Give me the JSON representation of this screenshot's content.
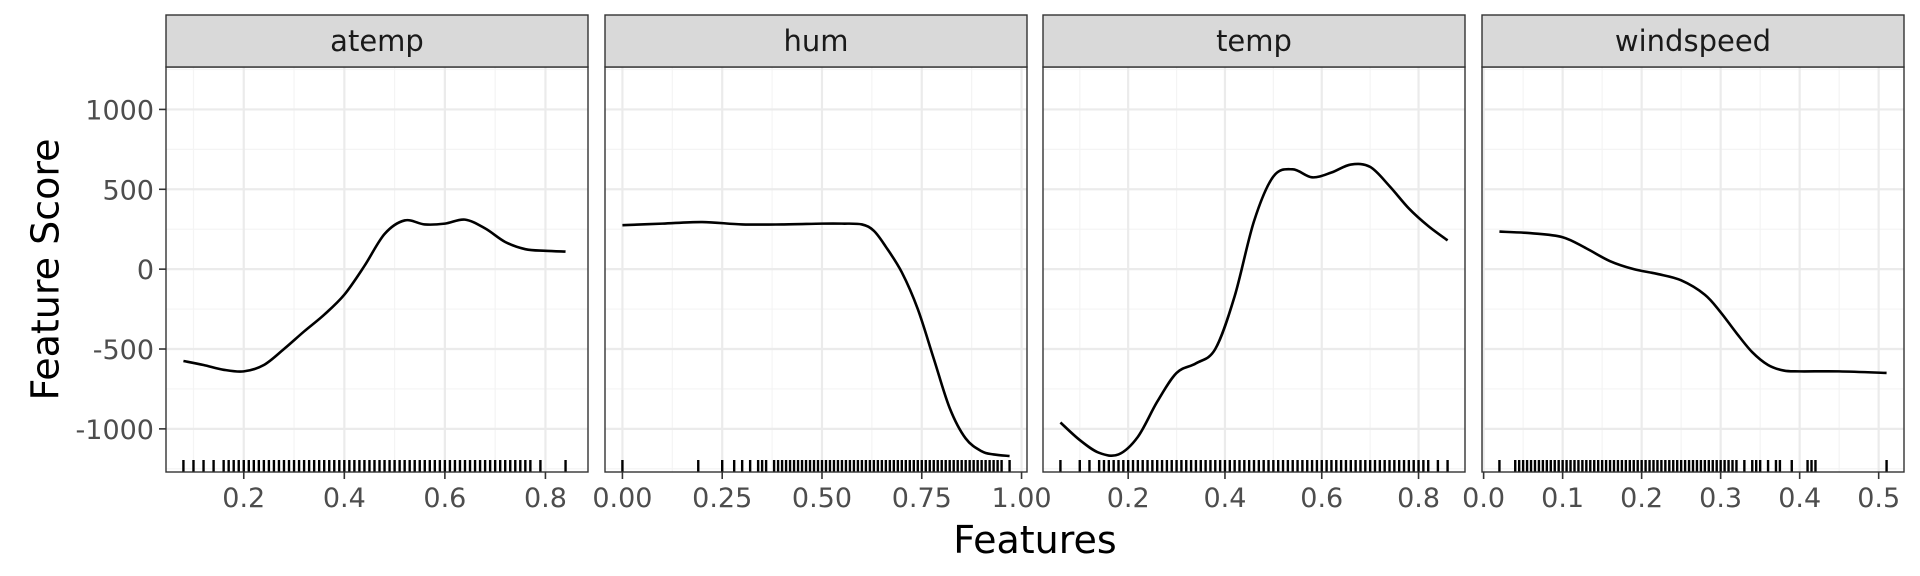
{
  "chart_data": {
    "type": "line",
    "xlabel": "Features",
    "ylabel": "Feature Score",
    "ylim": [
      -1270,
      1000
    ],
    "y_ticks": [
      1000,
      500,
      0,
      -500,
      -1000
    ],
    "y_tick_labels": [
      "1000",
      "500",
      "0",
      "-500",
      "-1000"
    ],
    "grid": true,
    "panels": [
      {
        "name": "atemp",
        "xlim": [
          0.08,
          0.85
        ],
        "x_ticks": [
          0.2,
          0.4,
          0.6,
          0.8
        ],
        "x_tick_labels": [
          "0.2",
          "0.4",
          "0.6",
          "0.8"
        ],
        "x": [
          0.08,
          0.12,
          0.16,
          0.2,
          0.24,
          0.28,
          0.32,
          0.36,
          0.4,
          0.44,
          0.48,
          0.52,
          0.56,
          0.6,
          0.64,
          0.68,
          0.72,
          0.76,
          0.8,
          0.84
        ],
        "y": [
          -575,
          -600,
          -630,
          -640,
          -600,
          -500,
          -390,
          -285,
          -160,
          20,
          220,
          305,
          280,
          285,
          310,
          255,
          170,
          125,
          115,
          110
        ],
        "rug": [
          0.08,
          0.1,
          0.12,
          0.14,
          0.16,
          0.17,
          0.18,
          0.19,
          0.2,
          0.21,
          0.22,
          0.23,
          0.24,
          0.25,
          0.26,
          0.27,
          0.28,
          0.29,
          0.3,
          0.31,
          0.32,
          0.33,
          0.34,
          0.35,
          0.36,
          0.37,
          0.38,
          0.39,
          0.4,
          0.41,
          0.42,
          0.43,
          0.44,
          0.45,
          0.46,
          0.47,
          0.48,
          0.49,
          0.5,
          0.51,
          0.52,
          0.53,
          0.54,
          0.55,
          0.56,
          0.57,
          0.58,
          0.59,
          0.6,
          0.61,
          0.62,
          0.63,
          0.64,
          0.65,
          0.66,
          0.67,
          0.68,
          0.69,
          0.7,
          0.71,
          0.72,
          0.73,
          0.74,
          0.75,
          0.76,
          0.77,
          0.79,
          0.84
        ]
      },
      {
        "name": "hum",
        "xlim": [
          0.0,
          0.97
        ],
        "x_ticks": [
          0.0,
          0.25,
          0.5,
          0.75,
          1.0
        ],
        "x_tick_labels": [
          "0.00",
          "0.25",
          "0.50",
          "0.75",
          "1.00"
        ],
        "x": [
          0.0,
          0.1,
          0.2,
          0.3,
          0.4,
          0.5,
          0.55,
          0.6,
          0.63,
          0.66,
          0.7,
          0.74,
          0.78,
          0.82,
          0.86,
          0.9,
          0.93,
          0.97
        ],
        "y": [
          275,
          285,
          295,
          280,
          280,
          285,
          285,
          280,
          240,
          140,
          -20,
          -250,
          -560,
          -870,
          -1060,
          -1140,
          -1160,
          -1170
        ],
        "rug": [
          0.0,
          0.19,
          0.25,
          0.28,
          0.3,
          0.32,
          0.34,
          0.35,
          0.36,
          0.38,
          0.39,
          0.4,
          0.41,
          0.42,
          0.43,
          0.44,
          0.45,
          0.46,
          0.47,
          0.48,
          0.49,
          0.5,
          0.51,
          0.52,
          0.53,
          0.54,
          0.55,
          0.56,
          0.57,
          0.58,
          0.59,
          0.6,
          0.61,
          0.62,
          0.63,
          0.64,
          0.65,
          0.66,
          0.67,
          0.68,
          0.69,
          0.7,
          0.71,
          0.72,
          0.73,
          0.74,
          0.75,
          0.76,
          0.77,
          0.78,
          0.79,
          0.8,
          0.81,
          0.82,
          0.83,
          0.84,
          0.85,
          0.86,
          0.87,
          0.88,
          0.89,
          0.9,
          0.91,
          0.92,
          0.93,
          0.94,
          0.95,
          0.97
        ]
      },
      {
        "name": "temp",
        "xlim": [
          0.06,
          0.86
        ],
        "x_ticks": [
          0.2,
          0.4,
          0.6,
          0.8
        ],
        "x_tick_labels": [
          "0.2",
          "0.4",
          "0.6",
          "0.8"
        ],
        "x": [
          0.06,
          0.1,
          0.14,
          0.18,
          0.22,
          0.26,
          0.3,
          0.34,
          0.38,
          0.42,
          0.46,
          0.5,
          0.54,
          0.58,
          0.62,
          0.66,
          0.7,
          0.74,
          0.78,
          0.82,
          0.86
        ],
        "y": [
          -960,
          -1070,
          -1150,
          -1160,
          -1050,
          -830,
          -650,
          -590,
          -500,
          -170,
          300,
          580,
          625,
          575,
          605,
          655,
          640,
          520,
          380,
          270,
          180
        ],
        "rug": [
          0.06,
          0.1,
          0.12,
          0.14,
          0.15,
          0.16,
          0.17,
          0.18,
          0.19,
          0.2,
          0.21,
          0.22,
          0.23,
          0.24,
          0.25,
          0.26,
          0.27,
          0.28,
          0.29,
          0.3,
          0.31,
          0.32,
          0.33,
          0.34,
          0.35,
          0.36,
          0.37,
          0.38,
          0.39,
          0.4,
          0.41,
          0.42,
          0.43,
          0.44,
          0.45,
          0.46,
          0.47,
          0.48,
          0.49,
          0.5,
          0.51,
          0.52,
          0.53,
          0.54,
          0.55,
          0.56,
          0.57,
          0.58,
          0.59,
          0.6,
          0.61,
          0.62,
          0.63,
          0.64,
          0.65,
          0.66,
          0.67,
          0.68,
          0.69,
          0.7,
          0.71,
          0.72,
          0.73,
          0.74,
          0.75,
          0.76,
          0.77,
          0.78,
          0.79,
          0.8,
          0.81,
          0.82,
          0.84,
          0.86
        ]
      },
      {
        "name": "windspeed",
        "xlim": [
          0.02,
          0.51
        ],
        "x_ticks": [
          0.0,
          0.1,
          0.2,
          0.3,
          0.4,
          0.5
        ],
        "x_tick_labels": [
          "0.0",
          "0.1",
          "0.2",
          "0.3",
          "0.4",
          "0.5"
        ],
        "x": [
          0.02,
          0.06,
          0.1,
          0.13,
          0.16,
          0.19,
          0.22,
          0.25,
          0.28,
          0.3,
          0.32,
          0.34,
          0.36,
          0.38,
          0.4,
          0.45,
          0.51
        ],
        "y": [
          235,
          225,
          200,
          130,
          50,
          0,
          -30,
          -70,
          -160,
          -270,
          -400,
          -520,
          -600,
          -635,
          -640,
          -640,
          -650
        ],
        "rug": [
          0.02,
          0.04,
          0.045,
          0.05,
          0.055,
          0.06,
          0.065,
          0.07,
          0.075,
          0.08,
          0.085,
          0.09,
          0.095,
          0.1,
          0.105,
          0.11,
          0.115,
          0.12,
          0.125,
          0.13,
          0.135,
          0.14,
          0.145,
          0.15,
          0.155,
          0.16,
          0.165,
          0.17,
          0.175,
          0.18,
          0.185,
          0.19,
          0.195,
          0.2,
          0.205,
          0.21,
          0.215,
          0.22,
          0.225,
          0.23,
          0.235,
          0.24,
          0.245,
          0.25,
          0.255,
          0.26,
          0.265,
          0.27,
          0.275,
          0.28,
          0.285,
          0.29,
          0.295,
          0.3,
          0.305,
          0.31,
          0.315,
          0.32,
          0.33,
          0.34,
          0.345,
          0.35,
          0.36,
          0.37,
          0.375,
          0.39,
          0.41,
          0.415,
          0.42,
          0.51
        ]
      }
    ]
  }
}
